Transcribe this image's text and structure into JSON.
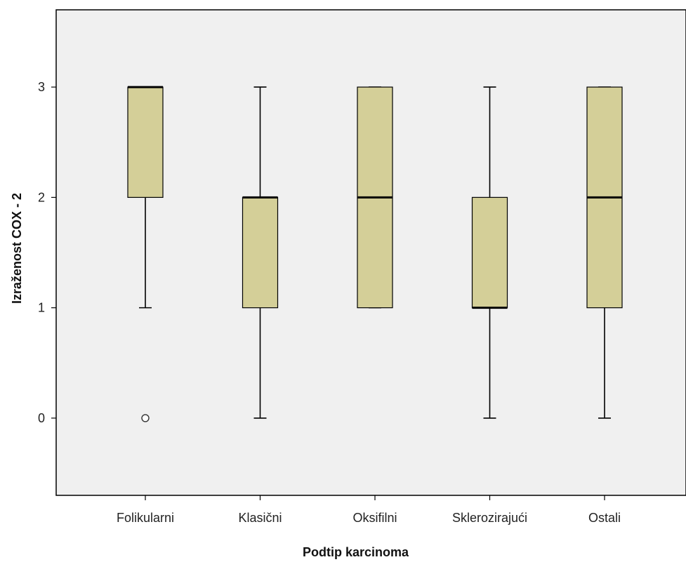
{
  "chart_data": {
    "type": "boxplot",
    "xlabel": "Podtip karcinoma",
    "ylabel": "Izraženost COX - 2",
    "categories": [
      "Folikularni",
      "Klasični",
      "Oksifilni",
      "Sklerozirajući",
      "Ostali"
    ],
    "yticks": [
      "0",
      "1",
      "2",
      "3"
    ],
    "ylim": [
      -0.7,
      3.7
    ],
    "grid": false,
    "colors": {
      "box_fill": "#d4cf98",
      "plot_bg": "#f0f0f0",
      "stroke": "#000000"
    },
    "boxes": [
      {
        "category": "Folikularni",
        "whisker_low": 1,
        "q1": 2,
        "median": 3,
        "q3": 3,
        "whisker_high": 3,
        "outliers": [
          0
        ]
      },
      {
        "category": "Klasični",
        "whisker_low": 0,
        "q1": 1,
        "median": 2,
        "q3": 2,
        "whisker_high": 3,
        "outliers": []
      },
      {
        "category": "Oksifilni",
        "whisker_low": 1,
        "q1": 1,
        "median": 2,
        "q3": 3,
        "whisker_high": 3,
        "outliers": []
      },
      {
        "category": "Sklerozirajući",
        "whisker_low": 0,
        "q1": 1,
        "median": 1,
        "q3": 2,
        "whisker_high": 3,
        "outliers": []
      },
      {
        "category": "Ostali",
        "whisker_low": 0,
        "q1": 1,
        "median": 2,
        "q3": 3,
        "whisker_high": 3,
        "outliers": []
      }
    ]
  }
}
